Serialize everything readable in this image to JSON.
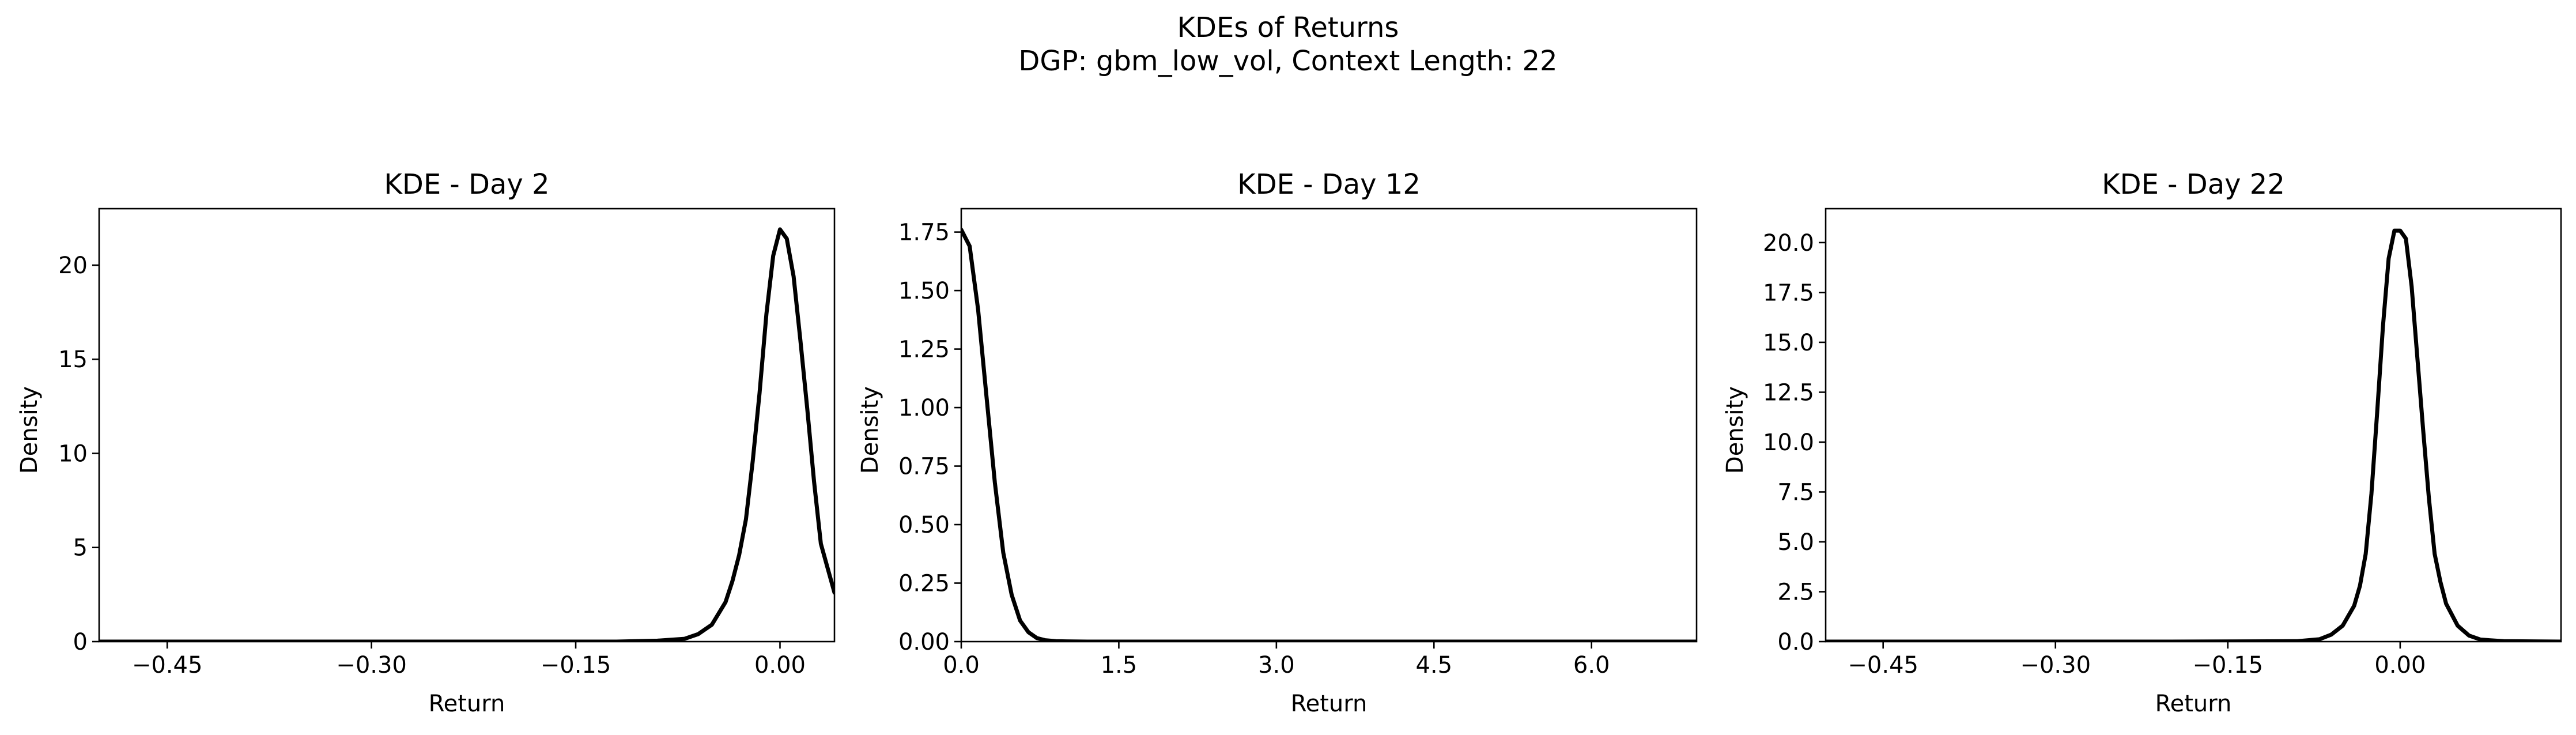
{
  "suptitle": [
    "KDEs of Returns",
    "DGP: gbm_low_vol, Context Length: 22"
  ],
  "line_color": "#000000",
  "chart_data": [
    {
      "type": "line",
      "title": "KDE - Day 2",
      "xlabel": "Return",
      "ylabel": "Density",
      "xlim": [
        -0.5,
        0.04
      ],
      "ylim": [
        0,
        23
      ],
      "xticks": [
        -0.45,
        -0.3,
        -0.15,
        0.0
      ],
      "xtick_labels": [
        "−0.45",
        "−0.30",
        "−0.15",
        "0.00"
      ],
      "yticks": [
        0,
        5,
        10,
        15,
        20
      ],
      "ytick_labels": [
        "0",
        "5",
        "10",
        "15",
        "20"
      ],
      "series": [
        {
          "x": [
            -0.5,
            -0.3,
            -0.2,
            -0.12,
            -0.09,
            -0.07,
            -0.06,
            -0.05,
            -0.04,
            -0.035,
            -0.03,
            -0.025,
            -0.02,
            -0.015,
            -0.01,
            -0.005,
            0.0,
            0.005,
            0.01,
            0.015,
            0.02,
            0.025,
            0.03,
            0.035,
            0.04
          ],
          "y": [
            0,
            0,
            0,
            0,
            0.05,
            0.15,
            0.4,
            0.9,
            2.1,
            3.2,
            4.6,
            6.5,
            9.6,
            13.2,
            17.4,
            20.5,
            21.9,
            21.4,
            19.4,
            16.0,
            12.4,
            8.5,
            5.2,
            3.9,
            2.6
          ]
        }
      ]
    },
    {
      "type": "line",
      "title": "KDE - Day 12",
      "xlabel": "Return",
      "ylabel": "Density",
      "xlim": [
        0,
        7.0
      ],
      "ylim": [
        0,
        1.85
      ],
      "xticks": [
        0.0,
        1.5,
        3.0,
        4.5,
        6.0
      ],
      "xtick_labels": [
        "0.0",
        "1.5",
        "3.0",
        "4.5",
        "6.0"
      ],
      "yticks": [
        0.0,
        0.25,
        0.5,
        0.75,
        1.0,
        1.25,
        1.5,
        1.75
      ],
      "ytick_labels": [
        "0.00",
        "0.25",
        "0.50",
        "0.75",
        "1.00",
        "1.25",
        "1.50",
        "1.75"
      ],
      "series": [
        {
          "x": [
            0.0,
            0.08,
            0.16,
            0.24,
            0.32,
            0.4,
            0.48,
            0.56,
            0.64,
            0.72,
            0.8,
            0.9,
            1.0,
            1.2,
            1.5,
            2.0,
            3.0,
            5.0,
            7.0
          ],
          "y": [
            1.76,
            1.69,
            1.42,
            1.05,
            0.68,
            0.38,
            0.2,
            0.09,
            0.04,
            0.015,
            0.006,
            0.002,
            0.001,
            0,
            0,
            0,
            0,
            0,
            0
          ]
        }
      ]
    },
    {
      "type": "line",
      "title": "KDE - Day 22",
      "xlabel": "Return",
      "ylabel": "Density",
      "xlim": [
        -0.5,
        0.14
      ],
      "ylim": [
        0,
        21.7
      ],
      "xticks": [
        -0.45,
        -0.3,
        -0.15,
        0.0
      ],
      "xtick_labels": [
        "−0.45",
        "−0.30",
        "−0.15",
        "0.00"
      ],
      "yticks": [
        0,
        2.5,
        5,
        7.5,
        10,
        12.5,
        15,
        17.5,
        20
      ],
      "ytick_labels": [
        "0.0",
        "2.5",
        "5.0",
        "7.5",
        "10.0",
        "12.5",
        "15.0",
        "17.5",
        "20.0"
      ],
      "series": [
        {
          "x": [
            -0.5,
            -0.2,
            -0.09,
            -0.07,
            -0.06,
            -0.05,
            -0.04,
            -0.035,
            -0.03,
            -0.025,
            -0.02,
            -0.015,
            -0.01,
            -0.005,
            0.0,
            0.005,
            0.01,
            0.015,
            0.02,
            0.025,
            0.03,
            0.035,
            0.04,
            0.05,
            0.06,
            0.07,
            0.09,
            0.14
          ],
          "y": [
            0,
            0,
            0.02,
            0.12,
            0.35,
            0.8,
            1.8,
            2.8,
            4.4,
            7.4,
            11.5,
            15.8,
            19.2,
            20.6,
            20.6,
            20.2,
            17.8,
            14.2,
            10.6,
            7.2,
            4.4,
            3.0,
            1.9,
            0.8,
            0.3,
            0.1,
            0.02,
            0
          ]
        }
      ]
    }
  ]
}
